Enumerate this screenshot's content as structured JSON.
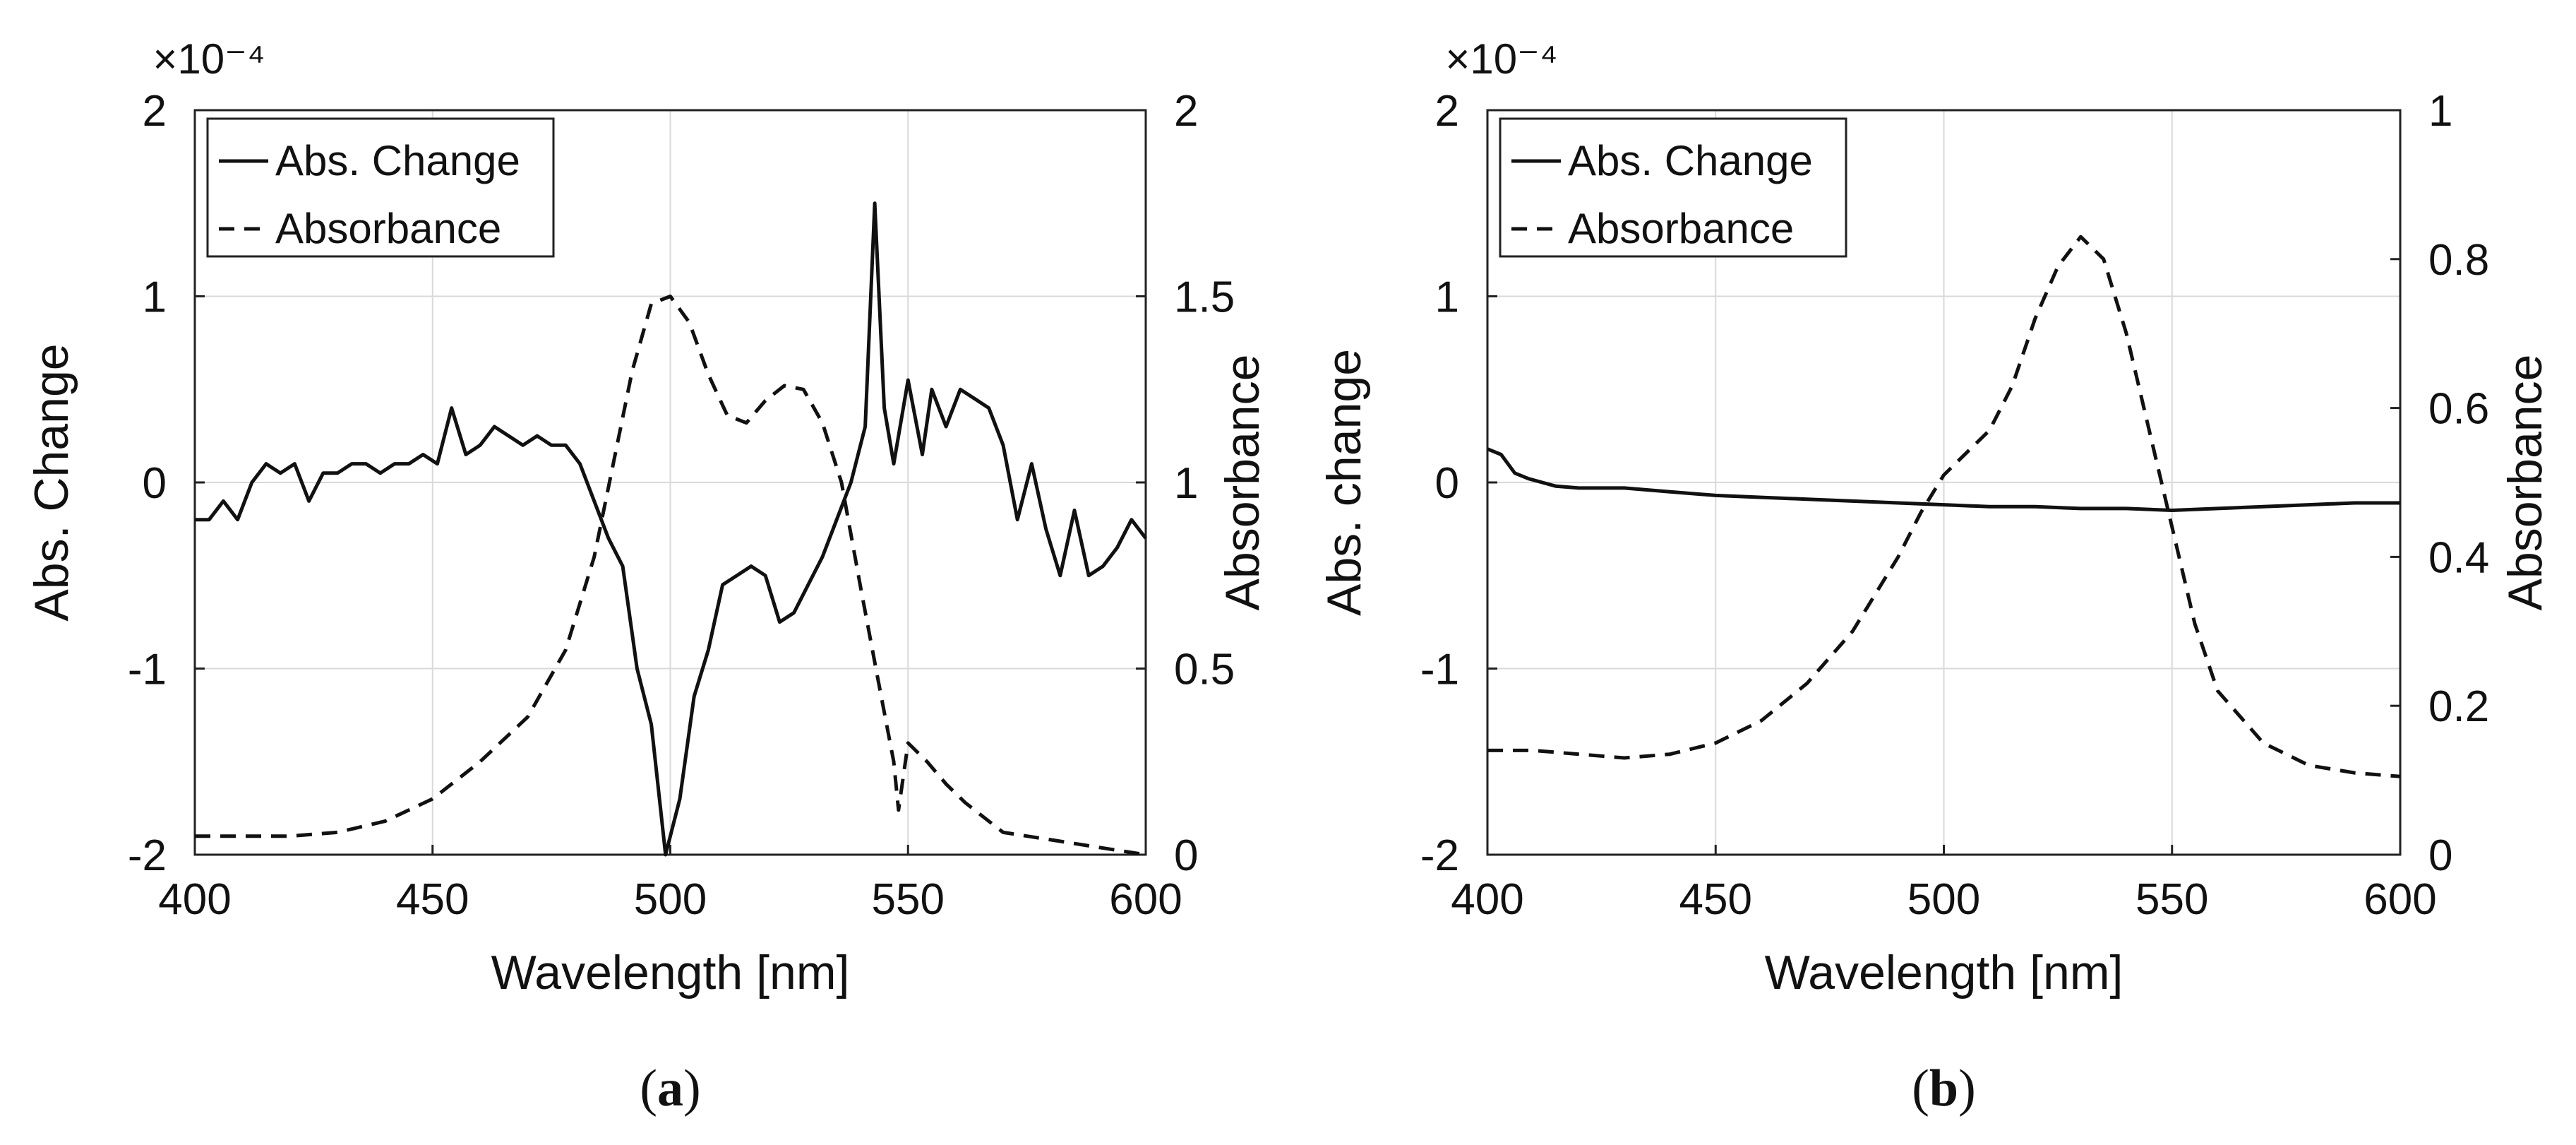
{
  "chart_data": [
    {
      "type": "line",
      "panel_label": "a",
      "xlabel": "Wavelength [nm]",
      "ylabel_left": "Abs. Change",
      "ylabel_right": "Absorbance",
      "left_scale_exponent": "×10⁻⁴",
      "xlim": [
        400,
        600
      ],
      "ylim_left": [
        -2,
        2
      ],
      "ylim_right": [
        0,
        2
      ],
      "xticks": [
        400,
        450,
        500,
        550,
        600
      ],
      "yticks_left": [
        -2,
        -1,
        0,
        1,
        2
      ],
      "yticks_right": [
        0,
        0.5,
        1,
        1.5,
        2
      ],
      "ytick_labels_left": [
        "-2",
        "-1",
        "0",
        "1",
        "2"
      ],
      "ytick_labels_right": [
        "0",
        "0.5",
        "1",
        "1.5",
        "2"
      ],
      "grid": true,
      "legend_position": "top-left",
      "series": [
        {
          "name": "Abs. Change",
          "axis": "left",
          "style": "solid",
          "x": [
            400,
            403,
            406,
            409,
            412,
            415,
            418,
            421,
            424,
            427,
            430,
            433,
            436,
            439,
            442,
            445,
            448,
            451,
            454,
            457,
            460,
            463,
            466,
            469,
            472,
            475,
            478,
            481,
            484,
            487,
            490,
            493,
            496,
            499,
            502,
            505,
            508,
            511,
            514,
            517,
            520,
            523,
            526,
            529,
            532,
            535,
            538,
            541,
            543,
            545,
            547,
            550,
            553,
            555,
            558,
            561,
            564,
            567,
            570,
            573,
            576,
            579,
            582,
            585,
            588,
            591,
            594,
            597,
            600
          ],
          "values": [
            -0.2,
            -0.2,
            -0.1,
            -0.2,
            0.0,
            0.1,
            0.05,
            0.1,
            -0.1,
            0.05,
            0.05,
            0.1,
            0.1,
            0.05,
            0.1,
            0.1,
            0.15,
            0.1,
            0.4,
            0.15,
            0.2,
            0.3,
            0.25,
            0.2,
            0.25,
            0.2,
            0.2,
            0.1,
            -0.1,
            -0.3,
            -0.45,
            -1.0,
            -1.3,
            -2.0,
            -1.7,
            -1.15,
            -0.9,
            -0.55,
            -0.5,
            -0.45,
            -0.5,
            -0.75,
            -0.7,
            -0.55,
            -0.4,
            -0.2,
            0.0,
            0.3,
            1.5,
            0.4,
            0.1,
            0.55,
            0.15,
            0.5,
            0.3,
            0.5,
            0.45,
            0.4,
            0.2,
            -0.2,
            0.1,
            -0.25,
            -0.5,
            -0.15,
            -0.5,
            -0.45,
            -0.35,
            -0.2,
            -0.3
          ]
        },
        {
          "name": "Absorbance",
          "axis": "right",
          "style": "dashed",
          "x": [
            400,
            410,
            420,
            430,
            440,
            450,
            460,
            470,
            478,
            484,
            488,
            492,
            496,
            500,
            504,
            508,
            512,
            516,
            520,
            524,
            528,
            532,
            536,
            540,
            544,
            547,
            548,
            550,
            554,
            558,
            562,
            566,
            570,
            580,
            590,
            600
          ],
          "values": [
            0.05,
            0.05,
            0.05,
            0.06,
            0.09,
            0.15,
            0.25,
            0.37,
            0.55,
            0.8,
            1.05,
            1.3,
            1.48,
            1.5,
            1.43,
            1.29,
            1.18,
            1.16,
            1.22,
            1.26,
            1.25,
            1.16,
            1.0,
            0.72,
            0.45,
            0.25,
            0.12,
            0.3,
            0.25,
            0.19,
            0.14,
            0.1,
            0.06,
            0.04,
            0.02,
            0.0
          ]
        }
      ]
    },
    {
      "type": "line",
      "panel_label": "b",
      "xlabel": "Wavelength [nm]",
      "ylabel_left": "Abs. change",
      "ylabel_right": "Absorbance",
      "left_scale_exponent": "×10⁻⁴",
      "xlim": [
        400,
        600
      ],
      "ylim_left": [
        -2,
        2
      ],
      "ylim_right": [
        0,
        1
      ],
      "xticks": [
        400,
        450,
        500,
        550,
        600
      ],
      "yticks_left": [
        -2,
        -1,
        0,
        1,
        2
      ],
      "yticks_right": [
        0,
        0.2,
        0.4,
        0.6,
        0.8,
        1
      ],
      "ytick_labels_left": [
        "-2",
        "-1",
        "0",
        "1",
        "2"
      ],
      "ytick_labels_right": [
        "0",
        "0.2",
        "0.4",
        "0.6",
        "0.8",
        "1"
      ],
      "grid": true,
      "legend_position": "top-left",
      "series": [
        {
          "name": "Abs. Change",
          "axis": "left",
          "style": "solid",
          "x": [
            400,
            403,
            406,
            409,
            412,
            415,
            420,
            430,
            440,
            450,
            460,
            470,
            480,
            490,
            500,
            510,
            520,
            530,
            540,
            550,
            560,
            570,
            580,
            590,
            600
          ],
          "values": [
            0.18,
            0.15,
            0.05,
            0.02,
            0.0,
            -0.02,
            -0.03,
            -0.03,
            -0.05,
            -0.07,
            -0.08,
            -0.09,
            -0.1,
            -0.11,
            -0.12,
            -0.13,
            -0.13,
            -0.14,
            -0.14,
            -0.15,
            -0.14,
            -0.13,
            -0.12,
            -0.11,
            -0.11
          ]
        },
        {
          "name": "Absorbance",
          "axis": "right",
          "style": "dashed",
          "x": [
            400,
            410,
            420,
            430,
            440,
            450,
            460,
            470,
            480,
            490,
            495,
            500,
            505,
            510,
            515,
            520,
            525,
            530,
            535,
            540,
            545,
            550,
            555,
            560,
            570,
            580,
            590,
            600
          ],
          "values": [
            0.14,
            0.14,
            0.135,
            0.13,
            0.135,
            0.15,
            0.18,
            0.23,
            0.3,
            0.4,
            0.46,
            0.51,
            0.54,
            0.57,
            0.63,
            0.72,
            0.79,
            0.83,
            0.8,
            0.7,
            0.57,
            0.44,
            0.31,
            0.22,
            0.15,
            0.12,
            0.11,
            0.105
          ]
        }
      ]
    }
  ]
}
